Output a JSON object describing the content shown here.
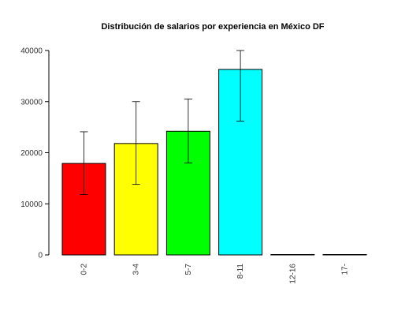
{
  "chart_data": {
    "type": "bar",
    "title": "Distribución de salarios por experiencia en México DF",
    "xlabel": "",
    "ylabel": "",
    "categories": [
      "0-2",
      "3-4",
      "5-7",
      "8-11",
      "12-16",
      "17-"
    ],
    "values": [
      17900,
      21800,
      24200,
      36300,
      0,
      0
    ],
    "error_low": [
      11800,
      13800,
      18000,
      26200,
      null,
      null
    ],
    "error_high": [
      24100,
      30000,
      30500,
      40000,
      null,
      null
    ],
    "colors": [
      "#ff0000",
      "#ffff00",
      "#00ff00",
      "#00ffff",
      "#ffffff",
      "#ffffff"
    ],
    "ylim": [
      0,
      40000
    ],
    "yticks": [
      0,
      10000,
      20000,
      30000,
      40000
    ],
    "ytick_labels": [
      "0",
      "10000",
      "20000",
      "30000",
      "40000"
    ],
    "grid": false,
    "legend": "none"
  }
}
